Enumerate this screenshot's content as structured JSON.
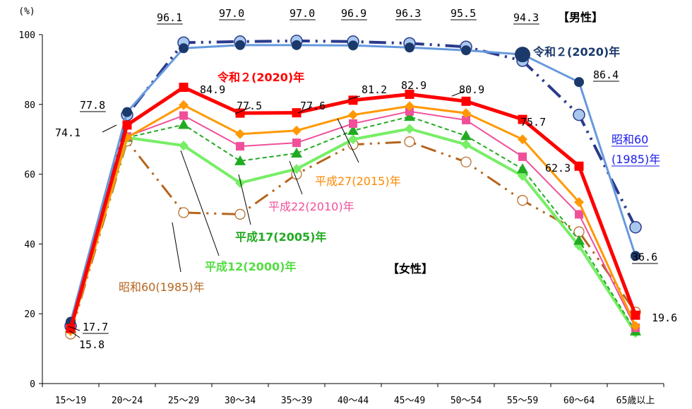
{
  "chart_data": {
    "type": "line",
    "unit_label": "(%)",
    "ylim": [
      0,
      100
    ],
    "yticks": [
      "0",
      "20",
      "40",
      "60",
      "80",
      "100"
    ],
    "categories": [
      "15～19",
      "20～24",
      "25～29",
      "30～34",
      "35～39",
      "40～44",
      "45～49",
      "50～54",
      "55～59",
      "60～64",
      "65歳以上"
    ],
    "grid": false,
    "series": [
      {
        "name": "昭和60(1985)年",
        "group": "女性",
        "color": "#b5651d",
        "values": [
          14.2,
          69.5,
          49.0,
          48.5,
          60.0,
          68.5,
          69.3,
          63.5,
          52.5,
          43.5,
          20.5
        ]
      },
      {
        "name": "平成12(2000)年",
        "group": "女性",
        "color": "#77ee66",
        "values": [
          15.5,
          70.5,
          68.2,
          57.5,
          61.5,
          70.0,
          73.0,
          68.5,
          59.5,
          39.5,
          14.5
        ]
      },
      {
        "name": "平成17(2005)年",
        "group": "女性",
        "color": "#22aa22",
        "values": [
          16.0,
          70.5,
          74.2,
          63.8,
          66.0,
          72.5,
          76.5,
          71.0,
          61.5,
          41.0,
          15.0
        ]
      },
      {
        "name": "平成22(2010)年",
        "group": "女性",
        "color": "#f0509a",
        "values": [
          15.8,
          70.8,
          76.8,
          68.0,
          69.0,
          74.5,
          78.0,
          75.5,
          65.0,
          48.5,
          16.0
        ]
      },
      {
        "name": "平成27(2015)年",
        "group": "女性",
        "color": "#ff9900",
        "values": [
          15.0,
          70.5,
          79.8,
          71.5,
          72.5,
          77.0,
          79.5,
          77.5,
          70.0,
          52.0,
          16.5
        ]
      },
      {
        "name": "令和２(2020)年",
        "group": "女性",
        "color": "#ff0000",
        "values": [
          15.8,
          74.1,
          84.9,
          77.5,
          77.6,
          81.2,
          82.9,
          80.9,
          75.7,
          62.3,
          19.6
        ]
      },
      {
        "name": "昭和60(1985)年",
        "group": "男性",
        "color": "#2a3a8c",
        "values": [
          16.5,
          77.0,
          97.7,
          98.0,
          98.2,
          98.0,
          97.5,
          96.5,
          92.5,
          77.0,
          44.8
        ]
      },
      {
        "name": "令和２(2020)年",
        "group": "男性",
        "color": "#6699dd",
        "values": [
          17.7,
          77.8,
          96.1,
          97.0,
          97.0,
          96.9,
          96.3,
          95.5,
          94.3,
          86.4,
          36.6
        ]
      }
    ],
    "group_labels": [
      "【男性】",
      "【女性】"
    ],
    "data_labels": {
      "male": [
        "17.7",
        "77.8",
        "96.1",
        "97.0",
        "97.0",
        "96.9",
        "96.3",
        "95.5",
        "94.3",
        "86.4",
        "36.6"
      ],
      "female": [
        "15.8",
        "74.1",
        "84.9",
        "77.5",
        "77.6",
        "81.2",
        "82.9",
        "80.9",
        "75.7",
        "62.3",
        "19.6"
      ]
    }
  }
}
